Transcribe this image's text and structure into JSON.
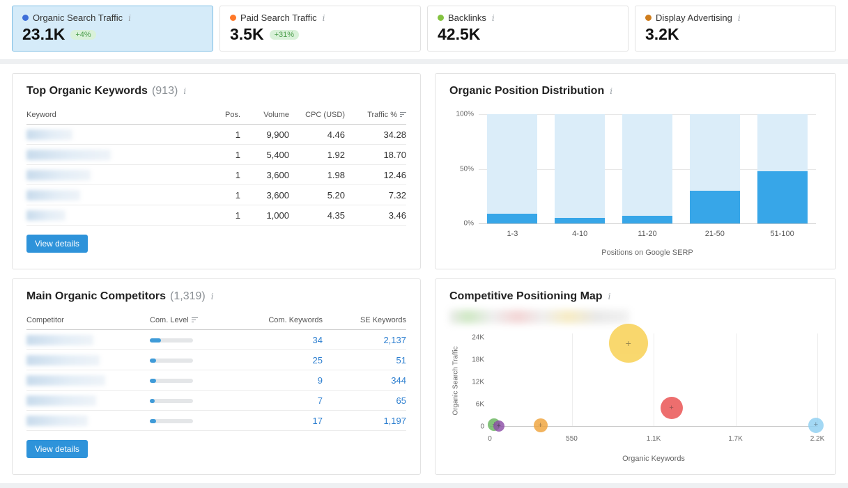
{
  "icons": {
    "info": "i"
  },
  "colors": {
    "accent_blue": "#2e93da",
    "link_blue": "#2d7fd0",
    "bar_fill": "#37a6e8",
    "bar_track": "#dbedf9",
    "selected_card_bg": "#d5ebf9",
    "selected_card_border": "#7cbde4",
    "badge_bg": "#d9f1d9",
    "badge_text": "#4d9e4d"
  },
  "metric_cards": [
    {
      "label": "Organic Search Traffic",
      "value": "23.1K",
      "badge": "+4%",
      "dot_color": "#3e6fd9",
      "selected": true
    },
    {
      "label": "Paid Search Traffic",
      "value": "3.5K",
      "badge": "+31%",
      "dot_color": "#ff7828",
      "selected": false
    },
    {
      "label": "Backlinks",
      "value": "42.5K",
      "badge": null,
      "dot_color": "#84c341",
      "selected": false
    },
    {
      "label": "Display Advertising",
      "value": "3.2K",
      "badge": null,
      "dot_color": "#cf7d1d",
      "selected": false
    }
  ],
  "keywords_panel": {
    "title": "Top Organic Keywords",
    "count": "(913)",
    "columns": {
      "keyword": "Keyword",
      "pos": "Pos.",
      "volume": "Volume",
      "cpc": "CPC (USD)",
      "traffic": "Traffic %"
    },
    "rows": [
      {
        "pos": "1",
        "volume": "9,900",
        "cpc": "4.46",
        "traffic": "34.28",
        "blur_width": 66
      },
      {
        "pos": "1",
        "volume": "5,400",
        "cpc": "1.92",
        "traffic": "18.70",
        "blur_width": 121
      },
      {
        "pos": "1",
        "volume": "3,600",
        "cpc": "1.98",
        "traffic": "12.46",
        "blur_width": 92
      },
      {
        "pos": "1",
        "volume": "3,600",
        "cpc": "5.20",
        "traffic": "7.32",
        "blur_width": 77
      },
      {
        "pos": "1",
        "volume": "1,000",
        "cpc": "4.35",
        "traffic": "3.46",
        "blur_width": 56
      }
    ],
    "button": "View details"
  },
  "distribution_panel": {
    "title": "Organic Position Distribution",
    "xlabel": "Positions on Google SERP",
    "y_ticks": [
      "100%",
      "50%",
      "0%"
    ]
  },
  "competitors_panel": {
    "title": "Main Organic Competitors",
    "count": "(1,319)",
    "columns": {
      "competitor": "Competitor",
      "level": "Com. Level",
      "com_keywords": "Com. Keywords",
      "se_keywords": "SE Keywords"
    },
    "rows": [
      {
        "level": 26,
        "com_keywords": "34",
        "se_keywords": "2,137",
        "blur_width": 96
      },
      {
        "level": 14,
        "com_keywords": "25",
        "se_keywords": "51",
        "blur_width": 105
      },
      {
        "level": 14,
        "com_keywords": "9",
        "se_keywords": "344",
        "blur_width": 113
      },
      {
        "level": 11,
        "com_keywords": "7",
        "se_keywords": "65",
        "blur_width": 100
      },
      {
        "level": 14,
        "com_keywords": "17",
        "se_keywords": "1,197",
        "blur_width": 88
      }
    ],
    "button": "View details"
  },
  "map_panel": {
    "title": "Competitive Positioning Map",
    "xlabel": "Organic Keywords",
    "ylabel": "Organic Search Traffic",
    "y_ticks": [
      "24K",
      "18K",
      "12K",
      "6K",
      "0"
    ],
    "x_ticks": [
      "0",
      "550",
      "1.1K",
      "1.7K",
      "2.2K"
    ]
  },
  "chart_data": [
    {
      "type": "bar",
      "title": "Organic Position Distribution",
      "categories": [
        "1-3",
        "4-10",
        "11-20",
        "21-50",
        "51-100"
      ],
      "values": [
        9,
        5,
        7,
        30,
        48
      ],
      "xlabel": "Positions on Google SERP",
      "ylabel": "",
      "ylim": [
        0,
        100
      ],
      "unit": "%",
      "y_tick_labels": [
        "0%",
        "50%",
        "100%"
      ]
    },
    {
      "type": "scatter",
      "title": "Competitive Positioning Map",
      "xlabel": "Organic Keywords",
      "ylabel": "Organic Search Traffic",
      "xlim": [
        0,
        2200
      ],
      "ylim": [
        0,
        24000
      ],
      "x_tick_values": [
        0,
        550,
        1100,
        1700,
        2200
      ],
      "y_tick_values": [
        0,
        6000,
        12000,
        18000,
        24000
      ],
      "points": [
        {
          "name": "bubble-green",
          "x": 30,
          "y": 500,
          "r": 9,
          "color": "#69b55e"
        },
        {
          "name": "bubble-purple",
          "x": 60,
          "y": 100,
          "r": 8,
          "color": "#8d4fa8"
        },
        {
          "name": "bubble-orange",
          "x": 340,
          "y": 300,
          "r": 10,
          "color": "#f0a43c"
        },
        {
          "name": "bubble-yellow",
          "x": 930,
          "y": 22500,
          "r": 28,
          "color": "#f8cf4e"
        },
        {
          "name": "bubble-red",
          "x": 1220,
          "y": 5000,
          "r": 16,
          "color": "#ea4f4f"
        },
        {
          "name": "bubble-light-blue",
          "x": 2190,
          "y": 400,
          "r": 11,
          "color": "#8fd0f2"
        }
      ]
    }
  ]
}
